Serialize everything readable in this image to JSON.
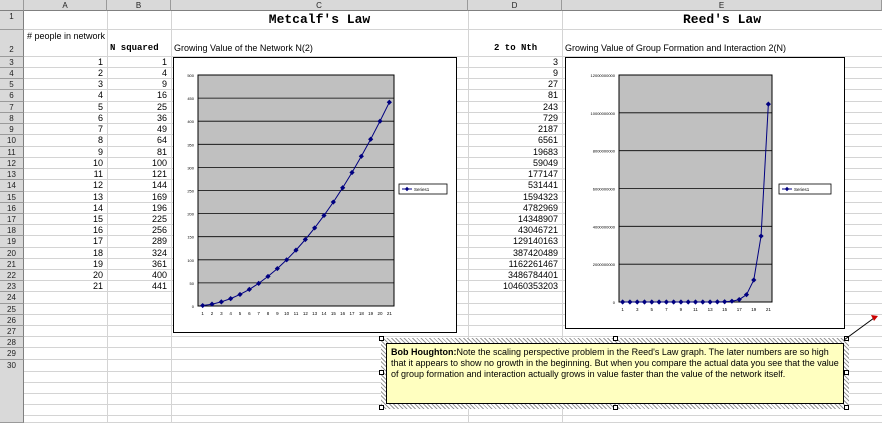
{
  "columns": [
    "A",
    "B",
    "C",
    "D",
    "E"
  ],
  "rows": [
    "1",
    "2",
    "3",
    "4",
    "5",
    "6",
    "7",
    "8",
    "9",
    "10",
    "11",
    "12",
    "13",
    "14",
    "15",
    "16",
    "17",
    "18",
    "19",
    "20",
    "21",
    "22",
    "23",
    "24",
    "25",
    "26",
    "27",
    "28",
    "29",
    "30"
  ],
  "headers": {
    "metcalf_title": "Metcalf's Law",
    "reed_title": "Reed's Law",
    "people_label": "# people in network",
    "nsquared_label": "N squared",
    "metcalf_chart_caption": "Growing Value of the Network N(2)",
    "two_to_nth_label": "2 to Nth",
    "reed_chart_caption": "Growing Value of Group Formation and Interaction 2(N)"
  },
  "table": {
    "people": [
      "1",
      "2",
      "3",
      "4",
      "5",
      "6",
      "7",
      "8",
      "9",
      "10",
      "11",
      "12",
      "13",
      "14",
      "15",
      "16",
      "17",
      "18",
      "19",
      "20",
      "21"
    ],
    "n_squared": [
      "1",
      "4",
      "9",
      "16",
      "25",
      "36",
      "49",
      "64",
      "81",
      "100",
      "121",
      "144",
      "169",
      "196",
      "225",
      "256",
      "289",
      "324",
      "361",
      "400",
      "441"
    ],
    "two_to_n": [
      "3",
      "9",
      "27",
      "81",
      "243",
      "729",
      "2187",
      "6561",
      "19683",
      "59049",
      "177147",
      "531441",
      "1594323",
      "4782969",
      "14348907",
      "43046721",
      "129140163",
      "387420489",
      "1162261467",
      "3486784401",
      "10460353203"
    ]
  },
  "comment": {
    "author": "Bob Houghton:",
    "text": "Note the scaling perspective problem in the Reed's Law graph. The later numbers are so high that it appears to show no growth in the beginning. But when you compare the actual data you see that the value of group formation and interaction actually grows in value faster than the value of the network itself."
  },
  "chart_data": [
    {
      "type": "line",
      "categories": [
        "1",
        "2",
        "3",
        "4",
        "5",
        "6",
        "7",
        "8",
        "9",
        "10",
        "11",
        "12",
        "13",
        "14",
        "15",
        "16",
        "17",
        "18",
        "19",
        "20",
        "21"
      ],
      "x_tick_labels": [
        "1",
        "2",
        "3",
        "4",
        "5",
        "6",
        "7",
        "8",
        "9",
        "10",
        "11",
        "12",
        "13",
        "14",
        "15",
        "16",
        "17",
        "18",
        "19",
        "20",
        "21"
      ],
      "series": [
        {
          "name": "Series1",
          "values": [
            1,
            4,
            9,
            16,
            25,
            36,
            49,
            64,
            81,
            100,
            121,
            144,
            169,
            196,
            225,
            256,
            289,
            324,
            361,
            400,
            441
          ]
        }
      ],
      "ylim": [
        0,
        500
      ],
      "y_ticks": [
        "0",
        "50",
        "100",
        "150",
        "200",
        "250",
        "300",
        "350",
        "400",
        "450",
        "500"
      ],
      "legend": "right",
      "plot_bg": "#c0c0c0",
      "line_color": "#000080"
    },
    {
      "type": "line",
      "categories": [
        "1",
        "2",
        "3",
        "4",
        "5",
        "6",
        "7",
        "8",
        "9",
        "10",
        "11",
        "12",
        "13",
        "14",
        "15",
        "16",
        "17",
        "18",
        "19",
        "20",
        "21"
      ],
      "x_tick_labels": [
        "1",
        "",
        "3",
        "",
        "5",
        "",
        "7",
        "",
        "9",
        "",
        "11",
        "",
        "13",
        "",
        "15",
        "",
        "17",
        "",
        "19",
        "",
        "21"
      ],
      "series": [
        {
          "name": "Series1",
          "values": [
            3,
            9,
            27,
            81,
            243,
            729,
            2187,
            6561,
            19683,
            59049,
            177147,
            531441,
            1594323,
            4782969,
            14348907,
            43046721,
            129140163,
            387420489,
            1162261467,
            3486784401,
            10460353203
          ]
        }
      ],
      "ylim": [
        0,
        12000000000
      ],
      "y_ticks": [
        "0",
        "2000000000",
        "4000000000",
        "6000000000",
        "8000000000",
        "10000000000",
        "12000000000"
      ],
      "legend": "right",
      "plot_bg": "#c0c0c0",
      "line_color": "#000080"
    }
  ]
}
